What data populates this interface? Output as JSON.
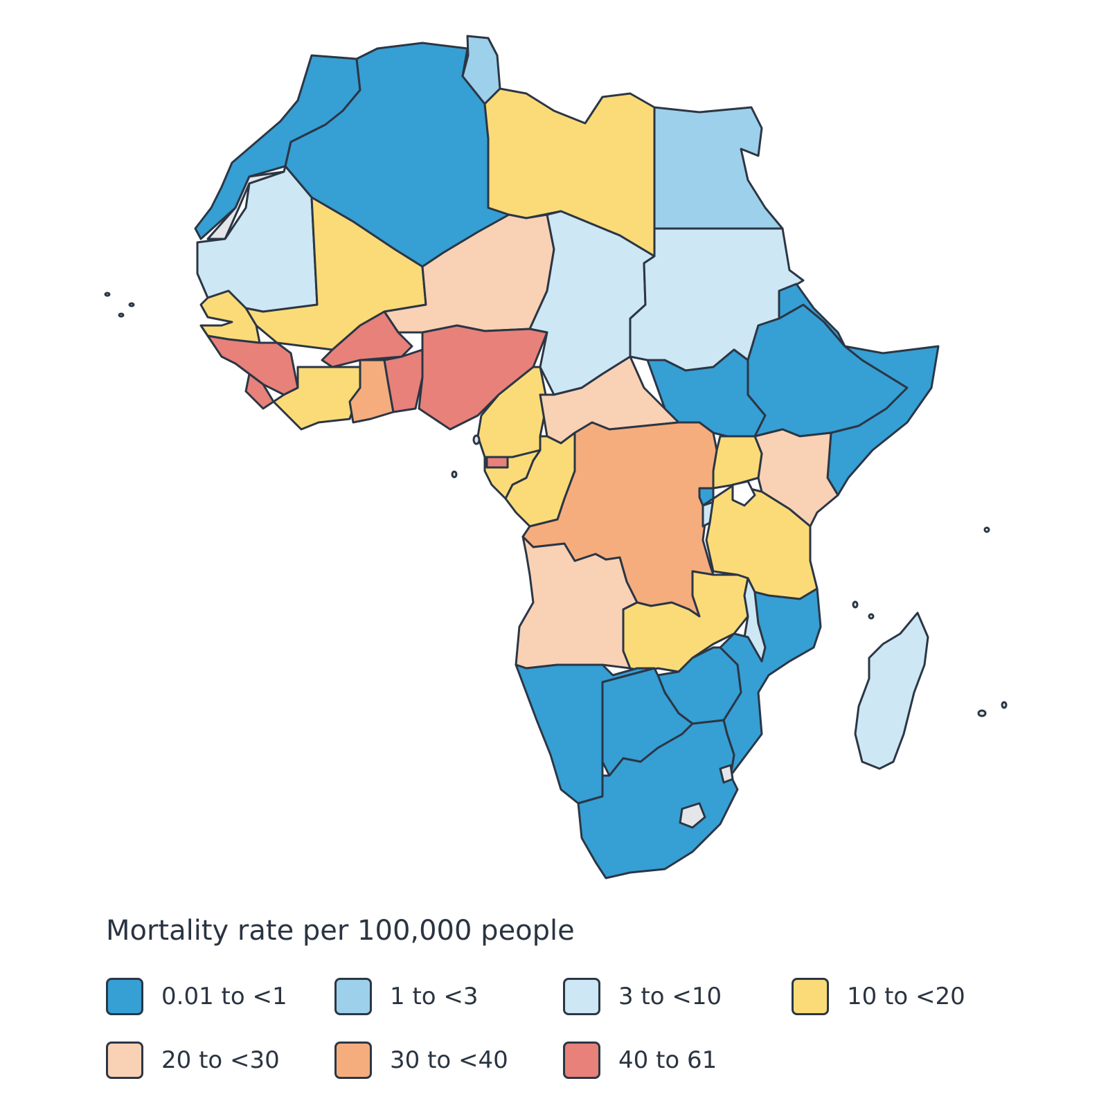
{
  "legend": {
    "title": "Mortality rate per 100,000 people",
    "items": [
      {
        "label": "0.01 to <1",
        "color": "#369fd4"
      },
      {
        "label": "1 to <3",
        "color": "#9dd0ea"
      },
      {
        "label": "3 to <10",
        "color": "#cde7f4"
      },
      {
        "label": "10 to <20",
        "color": "#fbdb78"
      },
      {
        "label": "20 to <30",
        "color": "#f9d1b5"
      },
      {
        "label": "30 to <40",
        "color": "#f5ad7e"
      },
      {
        "label": "40 to 61",
        "color": "#e7817a"
      }
    ]
  },
  "no_data_color": "#e4e6ea",
  "border_color": "#2b3645"
}
